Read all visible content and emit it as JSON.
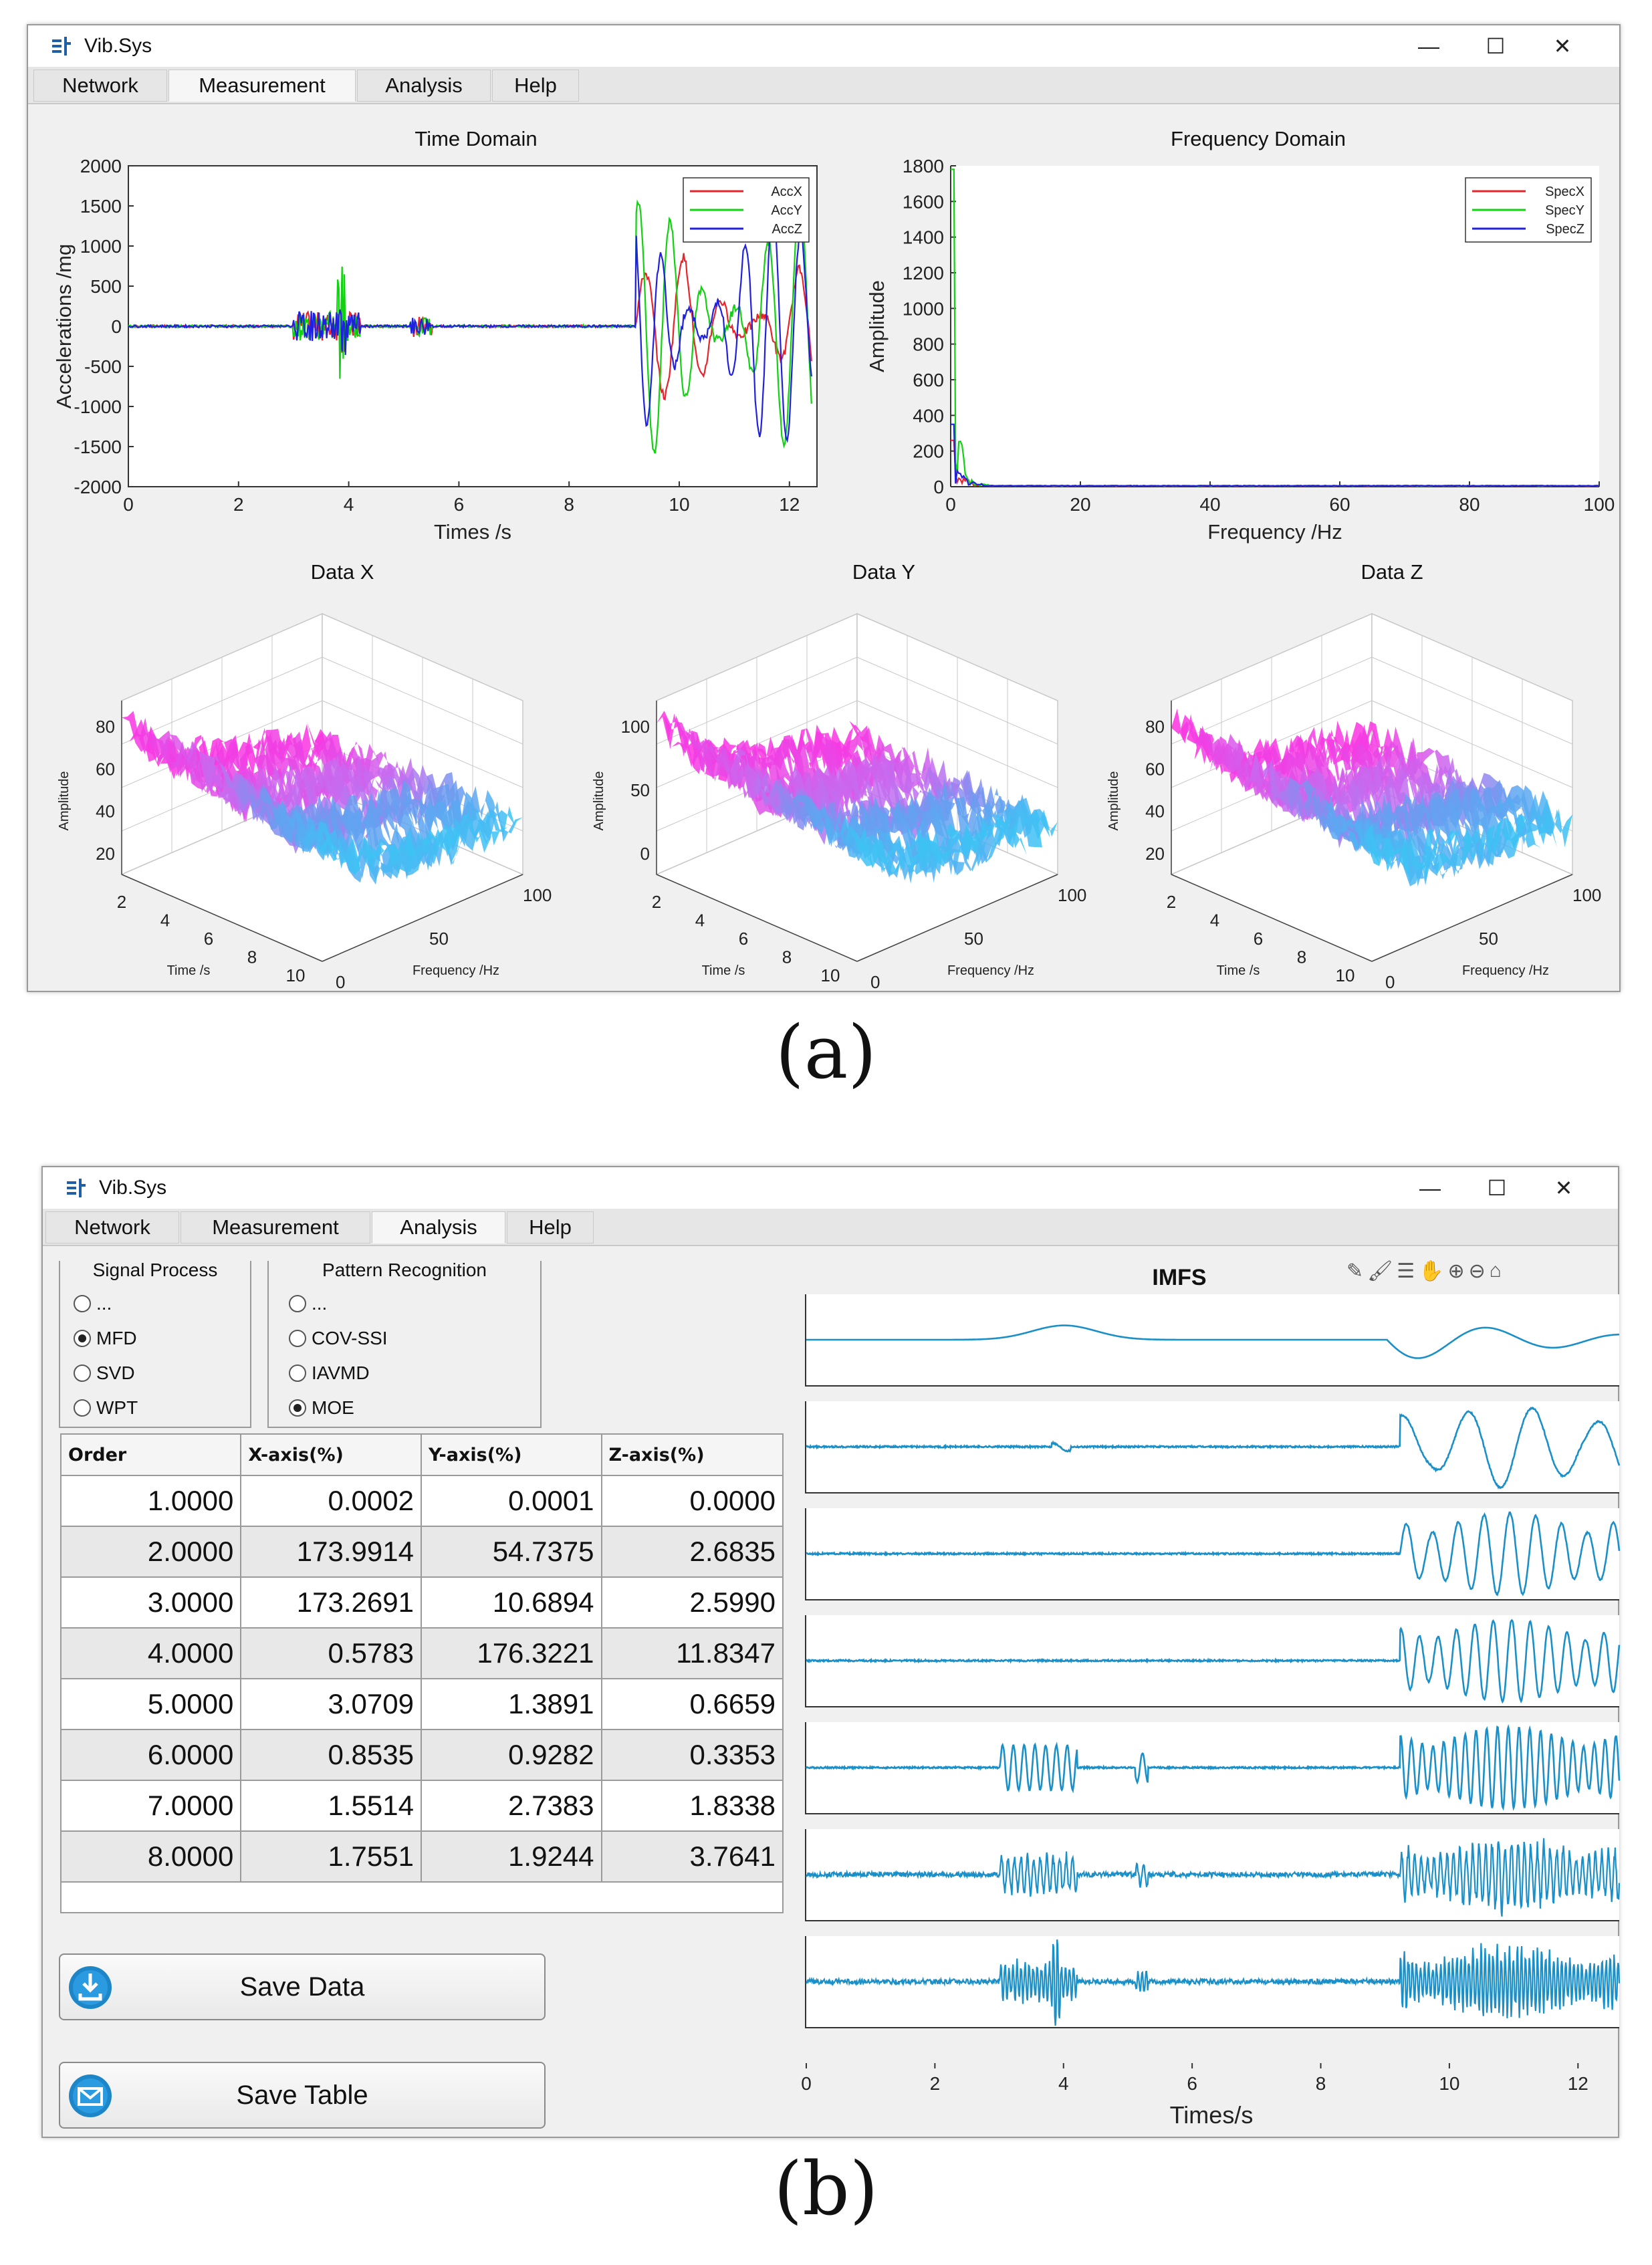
{
  "colors": {
    "x": "#e8232b",
    "y": "#11d111",
    "z": "#2020e0",
    "imf": "#1a8fc8"
  },
  "window_a": {
    "title": "Vib.Sys",
    "controls": {
      "minimize": "—",
      "maximize": "☐",
      "close": "✕"
    },
    "tabs": [
      "Network",
      "Measurement",
      "Analysis",
      "Help"
    ],
    "active_tab": "Measurement"
  },
  "window_b": {
    "title": "Vib.Sys",
    "controls": {
      "minimize": "—",
      "maximize": "☐",
      "close": "✕"
    },
    "tabs": [
      "Network",
      "Measurement",
      "Analysis",
      "Help"
    ],
    "active_tab": "Analysis",
    "signal_process": {
      "title": "Signal Process",
      "options": [
        "...",
        "MFD",
        "SVD",
        "WPT"
      ],
      "selected": "MFD"
    },
    "pattern_recognition": {
      "title": "Pattern Recognition",
      "options": [
        "...",
        "COV-SSI",
        "IAVMD",
        "MOE"
      ],
      "selected": "MOE"
    },
    "table": {
      "headers": [
        "Order",
        "X-axis(%)",
        "Y-axis(%)",
        "Z-axis(%)"
      ],
      "rows": [
        [
          "1.0000",
          "0.0002",
          "0.0001",
          "0.0000"
        ],
        [
          "2.0000",
          "173.9914",
          "54.7375",
          "2.6835"
        ],
        [
          "3.0000",
          "173.2691",
          "10.6894",
          "2.5990"
        ],
        [
          "4.0000",
          "0.5783",
          "176.3221",
          "11.8347"
        ],
        [
          "5.0000",
          "3.0709",
          "1.3891",
          "0.6659"
        ],
        [
          "6.0000",
          "0.8535",
          "0.9282",
          "0.3353"
        ],
        [
          "7.0000",
          "1.5514",
          "2.7383",
          "1.8338"
        ],
        [
          "8.0000",
          "1.7551",
          "1.9244",
          "3.7641"
        ]
      ]
    },
    "save_data_label": "Save Data",
    "save_table_label": "Save Table",
    "imfs_title": "IMFS",
    "imfs_x_ticks": [
      "0",
      "2",
      "4",
      "6",
      "8",
      "10",
      "12"
    ],
    "imfs_xlabel": "Times/s",
    "toolbar_icons": [
      "edit-icon",
      "brush-icon",
      "legend-icon",
      "pan-icon",
      "zoom-in-icon",
      "zoom-out-icon",
      "home-icon"
    ]
  },
  "captions": {
    "a": "(a)",
    "b": "(b)"
  },
  "chart_data": [
    {
      "type": "line",
      "title": "Time Domain",
      "xlabel": "Times /s",
      "ylabel": "Accelerations /mg",
      "xlim": [
        0,
        12.5
      ],
      "ylim": [
        -2000,
        2000
      ],
      "x_ticks": [
        "0",
        "2",
        "4",
        "6",
        "8",
        "10",
        "12"
      ],
      "y_ticks": [
        "2000",
        "1500",
        "1000",
        "500",
        "0",
        "-500",
        "-1000",
        "-1500",
        "-2000"
      ],
      "legend": [
        "AccX",
        "AccY",
        "AccZ"
      ],
      "legend_position": "top-right"
    },
    {
      "type": "line",
      "title": "Frequency Domain",
      "xlabel": "Frequency /Hz",
      "ylabel": "Amplitude",
      "xlim": [
        0,
        100
      ],
      "ylim": [
        0,
        1800
      ],
      "x_ticks": [
        "0",
        "20",
        "40",
        "60",
        "80",
        "100"
      ],
      "y_ticks": [
        "1800",
        "1600",
        "1400",
        "1200",
        "1000",
        "800",
        "600",
        "400",
        "200",
        "0"
      ],
      "legend": [
        "SpecX",
        "SpecY",
        "SpecZ"
      ],
      "legend_position": "top-right"
    },
    {
      "type": "surface",
      "title": "Data X",
      "zlabel": "Amplitude",
      "xlabel": "Time /s",
      "ylabel": "Frequency /Hz",
      "z_ticks": [
        "80",
        "60",
        "40",
        "20"
      ],
      "t_ticks": [
        "2",
        "4",
        "6",
        "8",
        "10"
      ],
      "f_ticks": [
        "0",
        "50",
        "100"
      ]
    },
    {
      "type": "surface",
      "title": "Data Y",
      "zlabel": "Amplitude",
      "xlabel": "Time /s",
      "ylabel": "Frequency /Hz",
      "z_ticks": [
        "100",
        "50",
        "0"
      ],
      "t_ticks": [
        "2",
        "4",
        "6",
        "8",
        "10"
      ],
      "f_ticks": [
        "0",
        "50",
        "100"
      ]
    },
    {
      "type": "surface",
      "title": "Data Z",
      "zlabel": "Amplitude",
      "xlabel": "Time /s",
      "ylabel": "Frequency /Hz",
      "z_ticks": [
        "80",
        "60",
        "40",
        "20"
      ],
      "t_ticks": [
        "2",
        "4",
        "6",
        "8",
        "10"
      ],
      "f_ticks": [
        "0",
        "50",
        "100"
      ]
    }
  ]
}
